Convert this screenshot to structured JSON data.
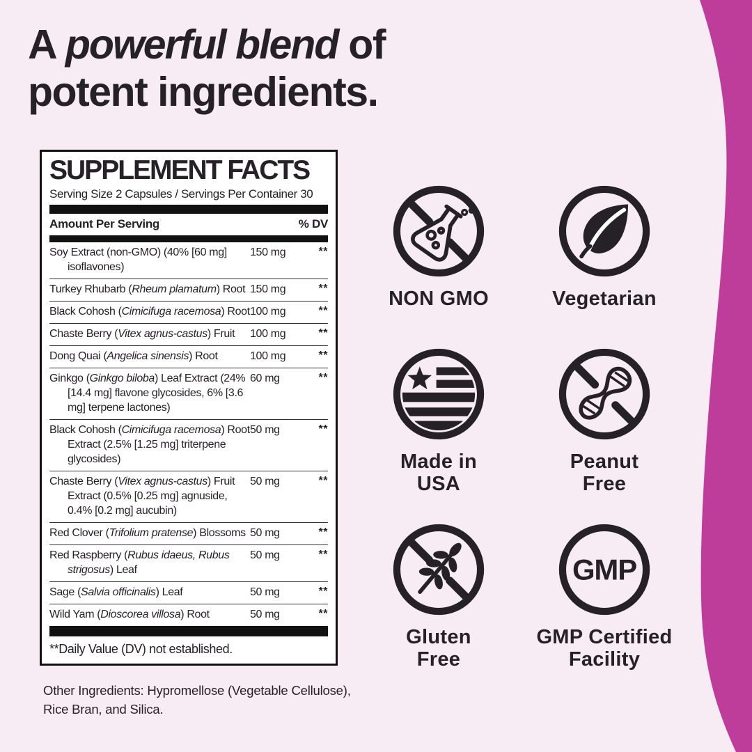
{
  "heading": {
    "line1_pre": "A",
    "line1_em": "powerful blend",
    "line1_post": "of",
    "line2": "potent ingredients."
  },
  "panel": {
    "title": "SUPPLEMENT FACTS",
    "serving_line": "Serving Size 2 Capsules / Servings Per Container 30",
    "col_amount": "Amount Per Serving",
    "col_dv": "% DV",
    "rows": [
      {
        "parts": [
          {
            "text": "Soy Extract (non-GMO) (40% [60 mg] isoflavones)",
            "italic": false
          }
        ],
        "amount": "150 mg",
        "dv": "**"
      },
      {
        "parts": [
          {
            "text": "Turkey Rhubarb (",
            "italic": false
          },
          {
            "text": "Rheum plamatum",
            "italic": true
          },
          {
            "text": ") Root",
            "italic": false
          }
        ],
        "amount": "150 mg",
        "dv": "**"
      },
      {
        "parts": [
          {
            "text": "Black Cohosh (",
            "italic": false
          },
          {
            "text": "Cimicifuga racemosa",
            "italic": true
          },
          {
            "text": ") Root",
            "italic": false
          }
        ],
        "amount": "100 mg",
        "dv": "**"
      },
      {
        "parts": [
          {
            "text": "Chaste Berry (",
            "italic": false
          },
          {
            "text": "Vitex agnus-castus",
            "italic": true
          },
          {
            "text": ") Fruit",
            "italic": false
          }
        ],
        "amount": "100 mg",
        "dv": "**"
      },
      {
        "parts": [
          {
            "text": "Dong Quai (",
            "italic": false
          },
          {
            "text": "Angelica sinensis",
            "italic": true
          },
          {
            "text": ") Root",
            "italic": false
          }
        ],
        "amount": "100 mg",
        "dv": "**"
      },
      {
        "parts": [
          {
            "text": "Ginkgo (",
            "italic": false
          },
          {
            "text": "Ginkgo biloba",
            "italic": true
          },
          {
            "text": ") Leaf Extract (24% [14.4 mg] flavone glycosides, 6% [3.6 mg] terpene lactones)",
            "italic": false
          }
        ],
        "amount": "60 mg",
        "dv": "**"
      },
      {
        "parts": [
          {
            "text": "Black Cohosh (",
            "italic": false
          },
          {
            "text": "Cimicifuga racemosa",
            "italic": true
          },
          {
            "text": ") Root Extract (2.5% [1.25 mg] triterpene glycosides)",
            "italic": false
          }
        ],
        "amount": "50 mg",
        "dv": "**"
      },
      {
        "parts": [
          {
            "text": "Chaste Berry (",
            "italic": false
          },
          {
            "text": "Vitex agnus-castus",
            "italic": true
          },
          {
            "text": ") Fruit Extract (0.5% [0.25 mg] agnuside, 0.4% [0.2 mg] aucubin)",
            "italic": false
          }
        ],
        "amount": "50 mg",
        "dv": "**"
      },
      {
        "parts": [
          {
            "text": "Red Clover (",
            "italic": false
          },
          {
            "text": "Trifolium pratense",
            "italic": true
          },
          {
            "text": ") Blossoms",
            "italic": false
          }
        ],
        "amount": "50 mg",
        "dv": "**"
      },
      {
        "parts": [
          {
            "text": "Red Raspberry (",
            "italic": false
          },
          {
            "text": "Rubus idaeus, Rubus strigosus",
            "italic": true
          },
          {
            "text": ") Leaf",
            "italic": false
          }
        ],
        "amount": "50 mg",
        "dv": "**"
      },
      {
        "parts": [
          {
            "text": "Sage (",
            "italic": false
          },
          {
            "text": "Salvia officinalis",
            "italic": true
          },
          {
            "text": ") Leaf",
            "italic": false
          }
        ],
        "amount": "50 mg",
        "dv": "**"
      },
      {
        "parts": [
          {
            "text": "Wild Yam (",
            "italic": false
          },
          {
            "text": "Dioscorea villosa",
            "italic": true
          },
          {
            "text": ") Root",
            "italic": false
          }
        ],
        "amount": "50 mg",
        "dv": "**"
      }
    ],
    "footnote": "**Daily Value (DV) not established."
  },
  "other_ingredients": "Other Ingredients: Hypromellose (Vegetable Cellulose), Rice Bran, and Silica.",
  "badges": [
    {
      "icon": "no-flask-icon",
      "label": "NON GMO"
    },
    {
      "icon": "leaf-icon",
      "label": "Vegetarian"
    },
    {
      "icon": "made-in-usa-flag-icon",
      "label": "Made in\nUSA"
    },
    {
      "icon": "no-peanut-icon",
      "label": "Peanut\nFree"
    },
    {
      "icon": "no-wheat-icon",
      "label": "Gluten\nFree"
    },
    {
      "icon": "gmp-circle-icon",
      "label": "GMP Certified\nFacility",
      "icon_text": "GMP"
    }
  ],
  "colors": {
    "background": "#f8ecf4",
    "accent_wave": "#bf3d9a",
    "text": "#262126",
    "panel_bg": "#ffffff",
    "panel_line": "#111111"
  }
}
